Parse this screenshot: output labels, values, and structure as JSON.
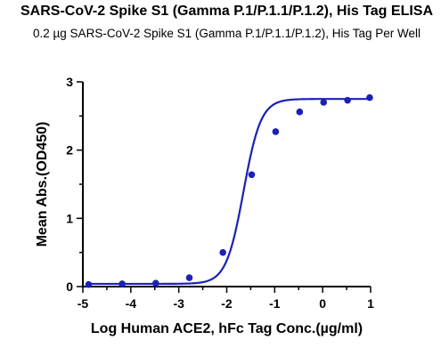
{
  "chart_data": {
    "type": "scatter",
    "title": "SARS-CoV-2 Spike S1 (Gamma P.1/P.1.1/P.1.2), His Tag ELISA",
    "subtitle": "0.2 µg SARS-CoV-2 Spike S1 (Gamma P.1/P.1.1/P.1.2), His Tag Per Well",
    "xlabel": "Log Human ACE2, hFc Tag Conc.(µg/ml)",
    "ylabel": "Mean Abs.(OD450)",
    "xlim": [
      -5,
      1
    ],
    "ylim": [
      0,
      3
    ],
    "xticks": [
      "-5",
      "-4",
      "-3",
      "-2",
      "-1",
      "0",
      "1"
    ],
    "yticks": [
      "0",
      "1",
      "2",
      "3"
    ],
    "grid": false,
    "fit": "four-parameter logistic",
    "series": [
      {
        "color": "#1a21b8",
        "points": [
          {
            "x": -4.88,
            "y": 0.03
          },
          {
            "x": -4.18,
            "y": 0.04
          },
          {
            "x": -3.48,
            "y": 0.05
          },
          {
            "x": -2.78,
            "y": 0.13
          },
          {
            "x": -2.08,
            "y": 0.5
          },
          {
            "x": -1.48,
            "y": 1.64
          },
          {
            "x": -0.98,
            "y": 2.27
          },
          {
            "x": -0.48,
            "y": 2.56
          },
          {
            "x": 0.02,
            "y": 2.7
          },
          {
            "x": 0.52,
            "y": 2.73
          },
          {
            "x": 0.98,
            "y": 2.77
          }
        ]
      }
    ]
  }
}
